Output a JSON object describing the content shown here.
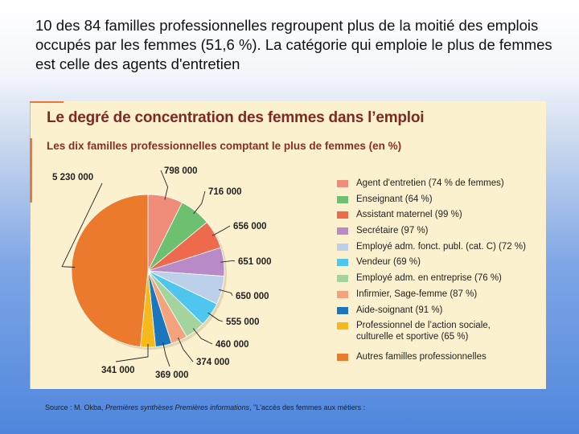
{
  "slide": {
    "text": "10 des 84 familles professionnelles regroupent plus de la moitié des emplois occupés par les femmes (51,6 %). La catégorie qui emploie le plus de femmes est celle des agents d'entretien"
  },
  "source": {
    "prefix": "Source : M. Okba, ",
    "italic": "Premières synthèses Premières informations",
    "suffix": ", \"L'accès des femmes aux métiers :"
  },
  "chart_data": {
    "type": "pie",
    "title": "Le degré de concentration des femmes dans l’emploi",
    "subtitle": "Les dix familles professionnelles comptant le plus de femmes (en %)",
    "start_angle_deg": 0,
    "direction": "clockwise",
    "legend_position": "right",
    "slices": [
      {
        "name": "Agent d'entretien (74 % de femmes)",
        "value": 798000,
        "label": "798 000",
        "color": "#ef8c7a"
      },
      {
        "name": "Enseignant (64 %)",
        "value": 716000,
        "label": "716 000",
        "color": "#6cc070"
      },
      {
        "name": "Assistant maternel (99 %)",
        "value": 656000,
        "label": "656 000",
        "color": "#ee6a4c"
      },
      {
        "name": "Secrétaire (97 %)",
        "value": 651000,
        "label": "651 000",
        "color": "#b88ac8"
      },
      {
        "name": "Employé adm. fonct. publ. (cat. C) (72 %)",
        "value": 650000,
        "label": "650 000",
        "color": "#bcd0ea"
      },
      {
        "name": "Vendeur (69 %)",
        "value": 555000,
        "label": "555 000",
        "color": "#4ec6ee"
      },
      {
        "name": "Employé adm. en entreprise (76 %)",
        "value": 460000,
        "label": "460 000",
        "color": "#a3d49e"
      },
      {
        "name": "Infirmier, Sage-femme (87 %)",
        "value": 374000,
        "label": "374 000",
        "color": "#f4a47c"
      },
      {
        "name": "Aide-soignant (91 %)",
        "value": 369000,
        "label": "369 000",
        "color": "#1c76bc"
      },
      {
        "name": "Professionnel de l’action sociale, culturelle et sportive (65 %)",
        "value": 341000,
        "label": "341 000",
        "color": "#f6b91c"
      },
      {
        "name": "Autres familles professionnelles",
        "value": 5230000,
        "label": "5 230 000",
        "color": "#ec7a2c"
      }
    ]
  }
}
